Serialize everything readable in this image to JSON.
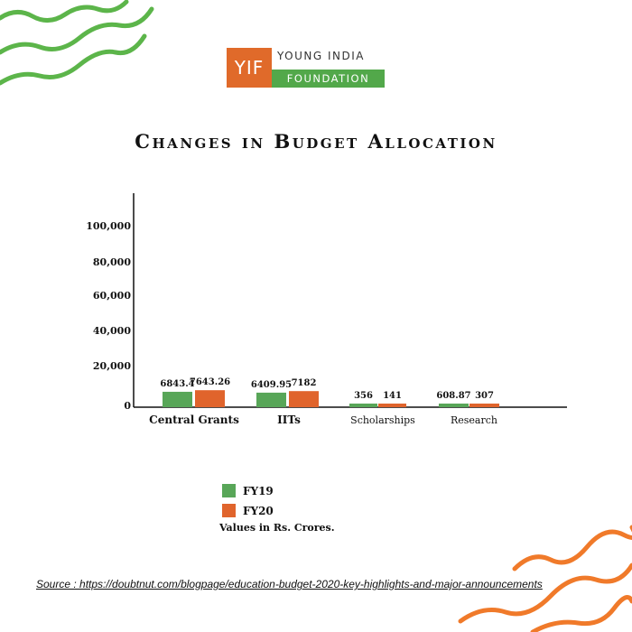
{
  "logo": {
    "mark": "YIF",
    "line1": "YOUNG INDIA",
    "line2": "FOUNDATION"
  },
  "colors": {
    "fy19": "#58a658",
    "fy20": "#e0642c",
    "deco_green": "#5cb54a",
    "deco_orange": "#f07a2a"
  },
  "chart_data": {
    "type": "bar",
    "title": "Changes in Budget Allocation",
    "categories": [
      "Central Grants",
      "IITs",
      "Scholarships",
      "Research"
    ],
    "series": [
      {
        "name": "FY19",
        "values": [
          6843.4,
          6409.95,
          356,
          608.87
        ],
        "labels": [
          "6843.4",
          "6409.95",
          "356",
          "608.87"
        ]
      },
      {
        "name": "FY20",
        "values": [
          7643.26,
          7182,
          141,
          307
        ],
        "labels": [
          "7643.26",
          "7182",
          "141",
          "307"
        ]
      }
    ],
    "yticks": [
      "0",
      "20,000",
      "40,000",
      "60,000",
      "80,000",
      "100,000"
    ],
    "xlabel": "",
    "ylabel": "",
    "grid": false,
    "legend_position": "bottom-center"
  },
  "legend_note": "Values in Rs. Crores.",
  "source": "Source : https://doubtnut.com/blogpage/education-budget-2020-key-highlights-and-major-announcements"
}
